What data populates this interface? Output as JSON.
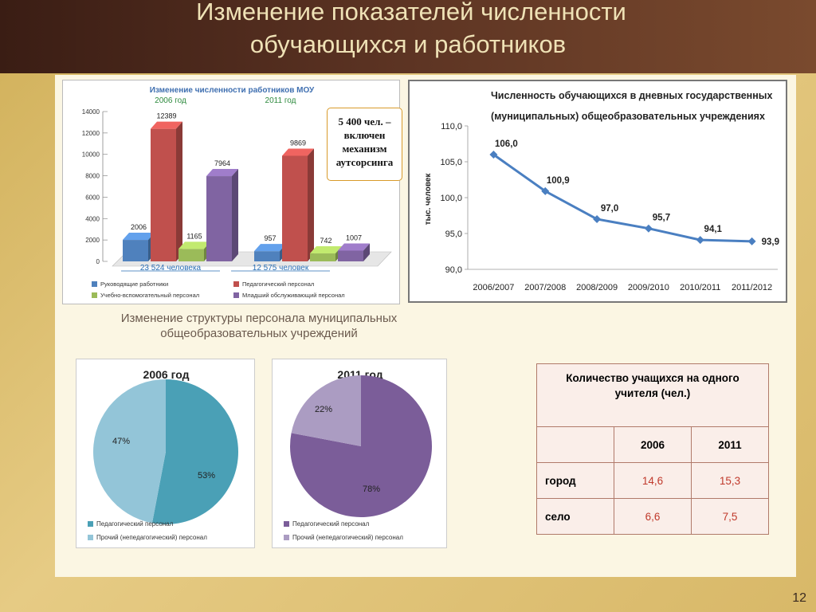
{
  "slide": {
    "title_line1": "Изменение показателей численности",
    "title_line2": "обучающихся и работников",
    "caption": "Изменение структуры персонала муниципальных общеобразовательных учреждений",
    "callout": "5 400 чел. – включен механизм аутсорсинга",
    "page_number": "12"
  },
  "chart_data": [
    {
      "type": "bar",
      "title": "Изменение численности работников МОУ",
      "categories": [
        "2006 год",
        "2011 год"
      ],
      "totals": [
        "23 524 человека",
        "12 575 человек"
      ],
      "ylim": [
        0,
        14000
      ],
      "yticks": [
        "0",
        "2000",
        "4000",
        "6000",
        "8000",
        "10000",
        "12000",
        "14000"
      ],
      "series": [
        {
          "name": "Руководящие работники",
          "color": "#4f81bd",
          "values": [
            2006,
            957
          ],
          "labels": [
            "2006",
            "957"
          ]
        },
        {
          "name": "Педагогический персонал",
          "color": "#c0504d",
          "values": [
            12389,
            9869
          ],
          "labels": [
            "12389",
            "9869"
          ]
        },
        {
          "name": "Учебно-вспомогательный персонал",
          "color": "#9bbb59",
          "values": [
            1165,
            742
          ],
          "labels": [
            "1165",
            "742"
          ]
        },
        {
          "name": "Младший обслуживающий персонал",
          "color": "#8064a2",
          "values": [
            7964,
            1007
          ],
          "labels": [
            "7964",
            "1007"
          ]
        }
      ],
      "legend": "bottom"
    },
    {
      "type": "line",
      "title_line1": "Численность обучающихся в дневных государственных",
      "title_line2": "(муниципальных) общеобразовательных учреждениях",
      "ylabel": "тыс. человек",
      "categories": [
        "2006/2007",
        "2007/2008",
        "2008/2009",
        "2009/2010",
        "2010/2011",
        "2011/2012"
      ],
      "values": [
        106.0,
        100.9,
        97.0,
        95.7,
        94.1,
        93.9
      ],
      "labels": [
        "106,0",
        "100,9",
        "97,0",
        "95,7",
        "94,1",
        "93,9"
      ],
      "ylim": [
        90,
        110
      ],
      "yticks": [
        "90,0",
        "95,0",
        "100,0",
        "105,0",
        "110,0"
      ],
      "color": "#4a7fc1"
    },
    {
      "type": "pie",
      "title": "2006 год",
      "values": [
        53,
        47
      ],
      "labels": [
        "53%",
        "47%"
      ],
      "legend": [
        "Педагогический персонал",
        "Прочий (непедагогический) персонал"
      ],
      "colors": [
        "#4aa0b6",
        "#93c5d8"
      ]
    },
    {
      "type": "pie",
      "title": "2011 год",
      "values": [
        78,
        22
      ],
      "labels": [
        "78%",
        "22%"
      ],
      "legend": [
        "Педагогический персонал",
        "Прочий (непедагогический) персонал"
      ],
      "colors": [
        "#7b5d99",
        "#ab9cc2"
      ]
    },
    {
      "type": "table",
      "title": "Количество учащихся на одного учителя (чел.)",
      "columns": [
        "2006",
        "2011"
      ],
      "rows": [
        {
          "label": "город",
          "values": [
            "14,6",
            "15,3"
          ]
        },
        {
          "label": "село",
          "values": [
            "6,6",
            "7,5"
          ]
        }
      ]
    }
  ]
}
